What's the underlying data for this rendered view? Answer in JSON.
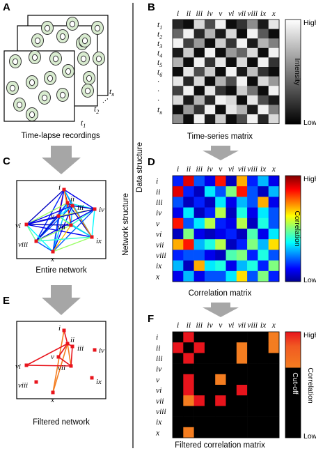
{
  "panels": {
    "a": {
      "letter": "A",
      "caption": "Time-lapse recordings",
      "frame_labels": [
        "t",
        "t",
        "t",
        "…"
      ],
      "frame_subs": [
        "1",
        "2",
        "n",
        ""
      ]
    },
    "b": {
      "letter": "B",
      "caption": "Time-series matrix",
      "colorbar_high": "High",
      "colorbar_low": "Low",
      "colorbar_title": "Intensity"
    },
    "c": {
      "letter": "C",
      "caption": "Entire network"
    },
    "d": {
      "letter": "D",
      "caption": "Correlation matrix",
      "colorbar_high": "High",
      "colorbar_low": "Low",
      "colorbar_title": "Correlation"
    },
    "e": {
      "letter": "E",
      "caption": "Filtered network"
    },
    "f": {
      "letter": "F",
      "caption": "Filtered correlation matrix",
      "colorbar_high": "High",
      "colorbar_low": "Low",
      "colorbar_title": "Correlation",
      "cutoff_label": "Cut-off"
    }
  },
  "side_labels": {
    "left": "Network structure",
    "right": "Data structure"
  },
  "node_labels": [
    "i",
    "ii",
    "iii",
    "iv",
    "v",
    "vi",
    "vii",
    "viii",
    "ix",
    "x"
  ],
  "time_labels": [
    "t",
    "t",
    "t",
    "t",
    "t",
    "t",
    "·",
    "·",
    "·",
    "t"
  ],
  "time_subs": [
    "1",
    "2",
    "3",
    "4",
    "5",
    "6",
    "",
    "",
    "",
    "n"
  ],
  "colors": {
    "arrow": "#a6a6a6",
    "node": "#e8141c",
    "cell_fill": "#d9ecd0",
    "cell_stroke": "#333333",
    "filtered_bg": "#000000",
    "filtered_edge": "#f47d20",
    "filtered_edge_strong": "#e8141c"
  },
  "timeseries_matrix": [
    [
      0.15,
      0.05,
      0.85,
      0.3,
      0.95,
      0.05,
      0.2,
      0.55,
      0.1,
      0.9
    ],
    [
      0.4,
      0.95,
      0.15,
      0.7,
      0.1,
      0.85,
      0.05,
      0.95,
      0.35,
      0.05
    ],
    [
      0.95,
      0.25,
      0.6,
      0.05,
      0.8,
      0.2,
      0.95,
      0.1,
      0.7,
      0.5
    ],
    [
      0.1,
      0.8,
      0.05,
      0.95,
      0.05,
      0.6,
      0.4,
      0.85,
      0.05,
      0.95
    ],
    [
      0.7,
      0.05,
      0.95,
      0.2,
      0.9,
      0.05,
      0.85,
      0.05,
      0.95,
      0.2
    ],
    [
      0.05,
      0.9,
      0.3,
      0.8,
      0.05,
      0.95,
      0.1,
      0.75,
      0.2,
      0.05
    ],
    [
      0.9,
      0.15,
      0.85,
      0.05,
      0.7,
      0.3,
      0.95,
      0.05,
      0.85,
      0.6
    ],
    [
      0.25,
      0.95,
      0.05,
      0.9,
      0.2,
      0.05,
      0.8,
      0.45,
      0.05,
      0.95
    ],
    [
      0.85,
      0.1,
      0.7,
      0.15,
      0.95,
      0.85,
      0.05,
      0.9,
      0.3,
      0.1
    ],
    [
      0.05,
      0.6,
      0.2,
      0.95,
      0.05,
      0.9,
      0.7,
      0.1,
      0.95,
      0.5
    ],
    [
      0.55,
      0.05,
      0.95,
      0.1,
      0.8,
      0.05,
      0.3,
      0.95,
      0.15,
      0.85
    ]
  ],
  "correlation_matrix": [
    [
      0.15,
      0.9,
      0.2,
      0.1,
      0.85,
      0.05,
      0.7,
      0.15,
      0.3,
      0.1
    ],
    [
      0.9,
      0.15,
      0.05,
      0.35,
      0.2,
      0.5,
      0.85,
      0.2,
      0.05,
      0.3
    ],
    [
      0.2,
      0.05,
      0.15,
      0.05,
      0.35,
      0.1,
      0.3,
      0.2,
      0.7,
      0.1
    ],
    [
      0.1,
      0.35,
      0.05,
      0.15,
      0.55,
      0.05,
      0.4,
      0.1,
      0.35,
      0.2
    ],
    [
      0.85,
      0.2,
      0.35,
      0.55,
      0.15,
      0.1,
      0.55,
      0.05,
      0.4,
      0.2
    ],
    [
      0.05,
      0.5,
      0.1,
      0.05,
      0.1,
      0.15,
      0.05,
      0.45,
      0.1,
      0.35
    ],
    [
      0.7,
      0.85,
      0.3,
      0.4,
      0.55,
      0.05,
      0.15,
      0.5,
      0.3,
      0.65
    ],
    [
      0.15,
      0.2,
      0.2,
      0.1,
      0.05,
      0.45,
      0.5,
      0.15,
      0.4,
      0.2
    ],
    [
      0.3,
      0.05,
      0.7,
      0.35,
      0.4,
      0.1,
      0.3,
      0.4,
      0.15,
      0.5
    ],
    [
      0.1,
      0.3,
      0.1,
      0.2,
      0.2,
      0.35,
      0.65,
      0.2,
      0.5,
      0.15
    ]
  ],
  "filtered_matrix": [
    [
      0.0,
      1.0,
      0.0,
      0.0,
      0.0,
      0.0,
      0.0,
      0.0,
      0.0,
      0.75
    ],
    [
      1.0,
      0.0,
      1.0,
      0.0,
      0.0,
      0.0,
      0.75,
      0.0,
      0.0,
      0.75
    ],
    [
      0.0,
      1.0,
      0.0,
      0.0,
      0.0,
      0.0,
      0.75,
      0.0,
      0.0,
      0.0
    ],
    [
      0.0,
      0.0,
      0.0,
      0.0,
      0.0,
      0.0,
      0.0,
      0.0,
      0.0,
      0.0
    ],
    [
      0.0,
      1.0,
      0.0,
      0.0,
      0.75,
      0.0,
      0.0,
      0.0,
      0.0,
      0.0
    ],
    [
      0.0,
      1.0,
      0.0,
      0.0,
      0.0,
      0.0,
      1.0,
      0.0,
      0.0,
      0.0
    ],
    [
      0.0,
      0.75,
      1.0,
      0.0,
      1.0,
      0.0,
      0.0,
      0.0,
      0.0,
      0.0
    ],
    [
      0.0,
      0.0,
      0.0,
      0.0,
      0.0,
      0.0,
      0.0,
      0.0,
      0.0,
      0.0
    ],
    [
      0.0,
      0.0,
      0.0,
      0.0,
      0.0,
      0.0,
      0.0,
      0.0,
      0.0,
      0.0
    ],
    [
      0.0,
      0.75,
      0.0,
      0.0,
      0.0,
      0.0,
      0.0,
      0.0,
      0.0,
      0.0
    ]
  ],
  "cutoff_fraction": 0.35
}
